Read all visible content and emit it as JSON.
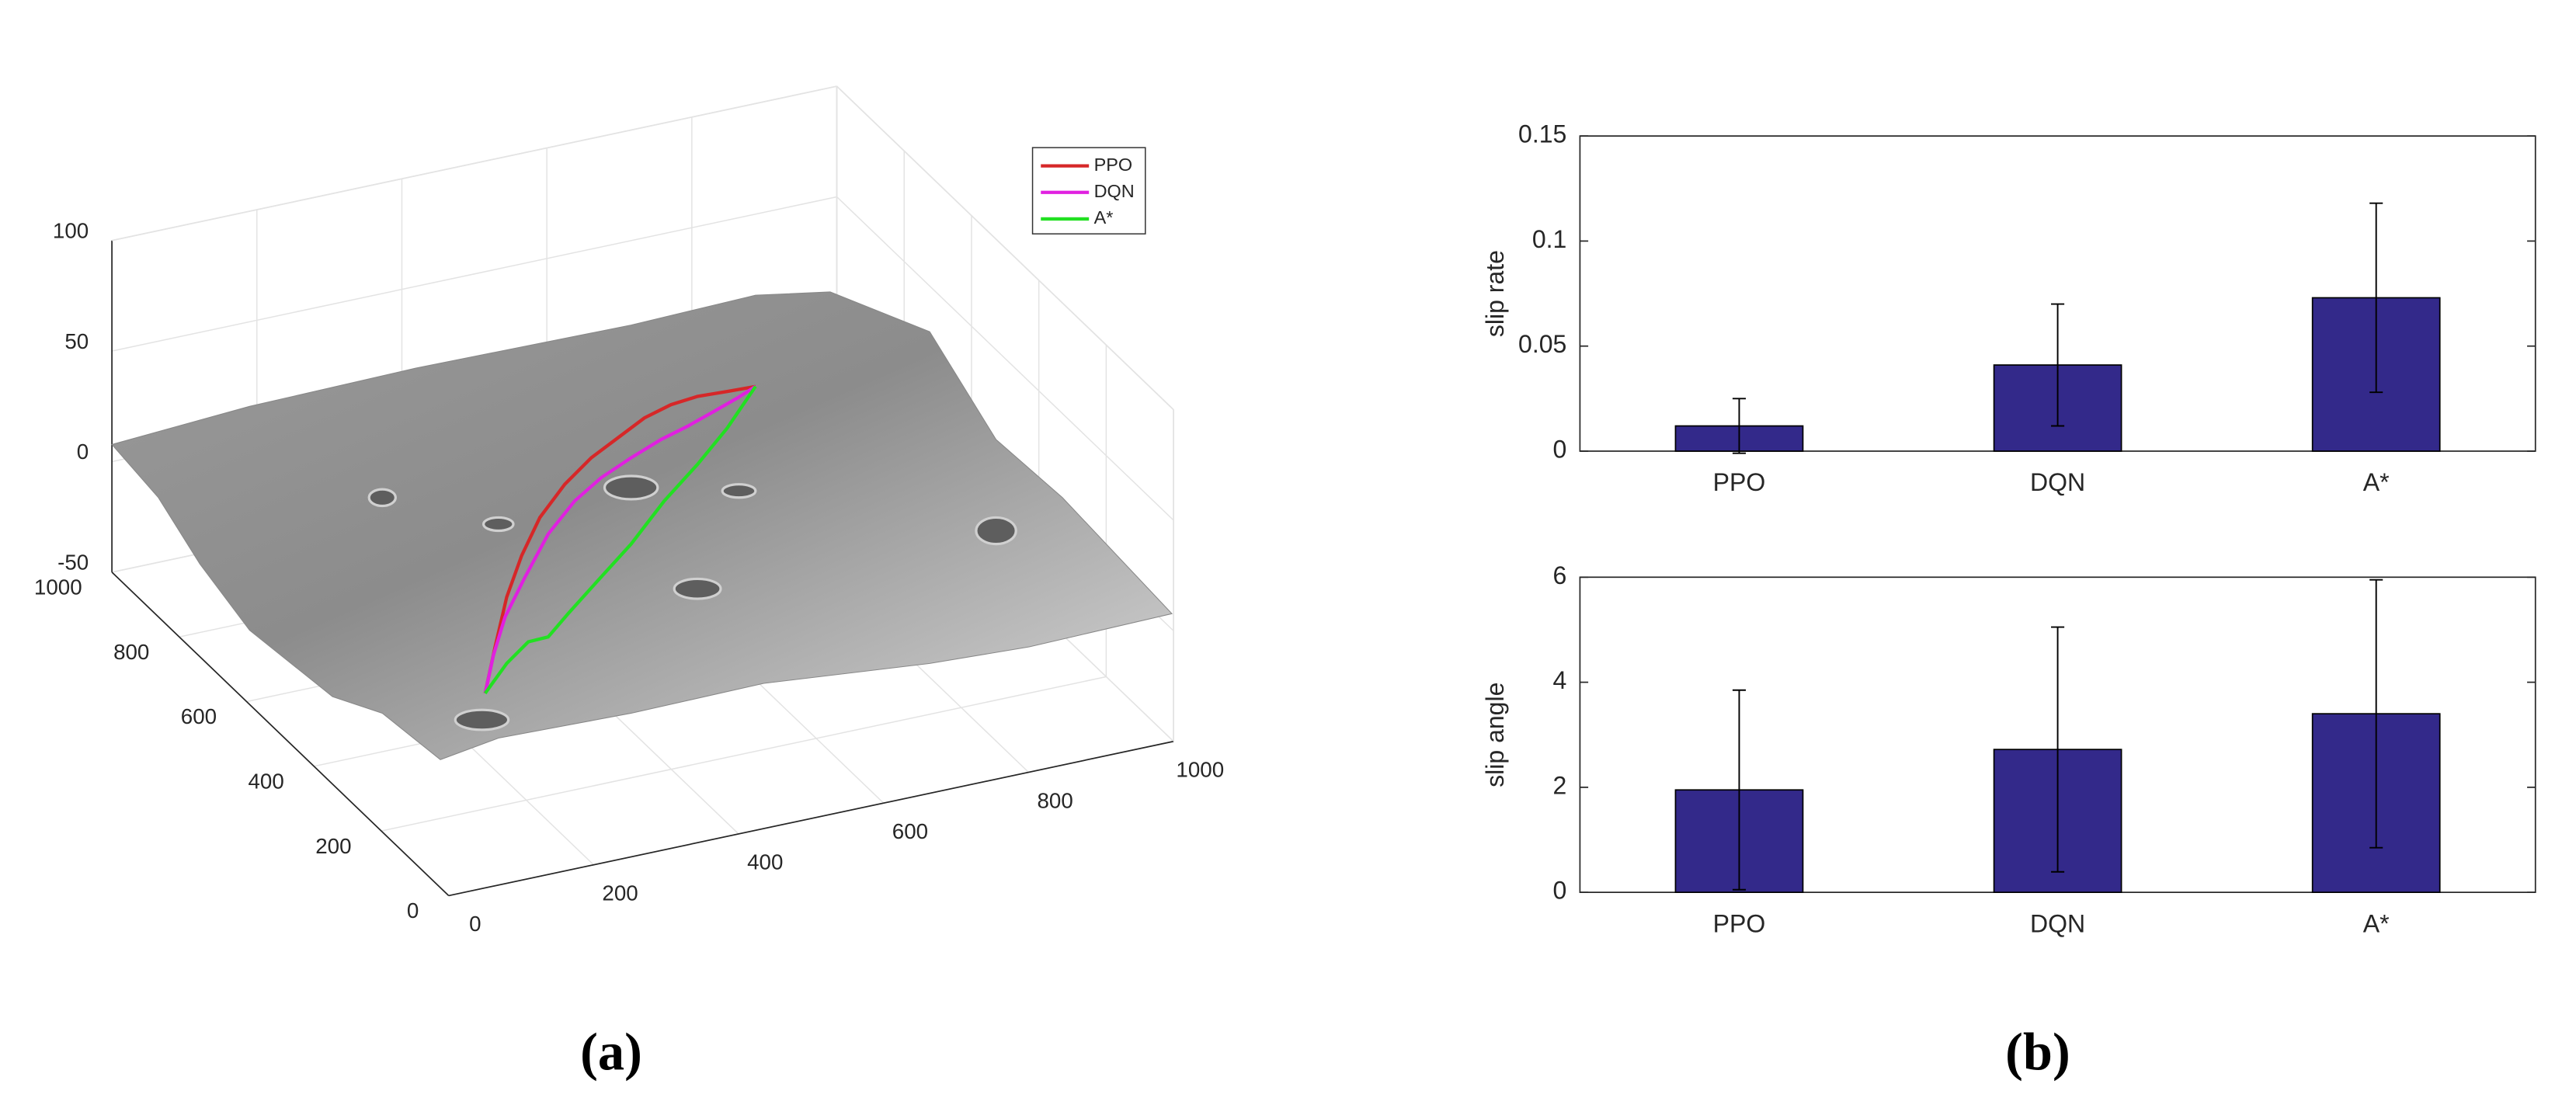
{
  "chart_data": [
    {
      "type": "surface3d",
      "label": "(a)",
      "series": [
        {
          "name": "PPO",
          "color": "#d62728"
        },
        {
          "name": "DQN",
          "color": "#e020e0"
        },
        {
          "name": "A*",
          "color": "#22e022"
        }
      ],
      "xlim": [
        0,
        1000
      ],
      "xticks": [
        0,
        200,
        400,
        600,
        800,
        1000
      ],
      "ylim": [
        0,
        1000
      ],
      "yticks": [
        0,
        200,
        400,
        600,
        800,
        1000
      ],
      "zlim": [
        -50,
        100
      ],
      "zticks": [
        -50,
        0,
        50,
        100
      ],
      "grid": true
    },
    {
      "type": "bar",
      "label": "(b)",
      "ylabel": "slip rate",
      "categories": [
        "PPO",
        "DQN",
        "A*"
      ],
      "values": [
        0.012,
        0.041,
        0.073
      ],
      "errors": [
        0.013,
        0.029,
        0.045
      ],
      "color": "#33298a",
      "ylim": [
        0,
        0.15
      ],
      "yticks": [
        0,
        0.05,
        0.1,
        0.15
      ]
    },
    {
      "type": "bar",
      "ylabel": "slip angle",
      "categories": [
        "PPO",
        "DQN",
        "A*"
      ],
      "values": [
        1.95,
        2.72,
        3.4
      ],
      "errors": [
        1.9,
        2.33,
        2.55
      ],
      "color": "#33298a",
      "ylim": [
        0,
        6
      ],
      "yticks": [
        0,
        2,
        4,
        6
      ]
    }
  ]
}
